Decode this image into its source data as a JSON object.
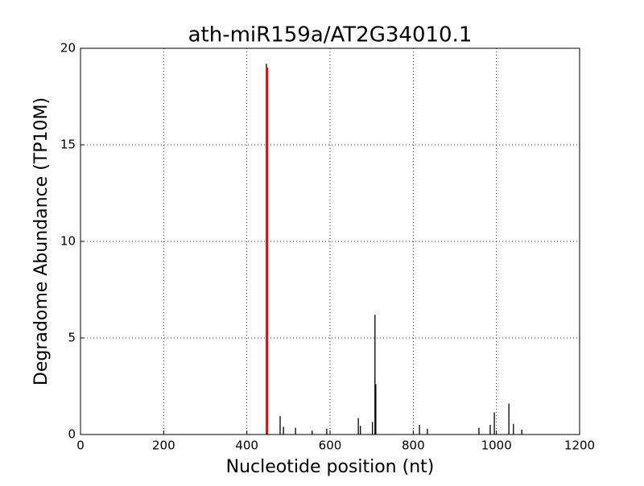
{
  "chart_data": {
    "type": "stem",
    "title": "ath-miR159a/AT2G34010.1",
    "x_label": "Nucleotide position (nt)",
    "y_label": "Degradome Abundance (TP10M)",
    "xlim": [
      0,
      1200
    ],
    "xticks": [
      0,
      200,
      400,
      600,
      800,
      1000,
      1200
    ],
    "ylim": [
      0,
      20
    ],
    "yticks": [
      0,
      5,
      10,
      15,
      20
    ],
    "grid": true,
    "series": [
      {
        "color": "#000000",
        "x": [
          447,
          480,
          488,
          517,
          557,
          592,
          668,
          673,
          702,
          708,
          710,
          815,
          834,
          958,
          985,
          995,
          1030,
          1041,
          1061
        ],
        "values": [
          19.2,
          0.95,
          0.4,
          0.35,
          0.2,
          0.3,
          0.85,
          0.45,
          0.65,
          6.2,
          2.6,
          0.5,
          0.3,
          0.35,
          0.5,
          1.15,
          1.6,
          0.55,
          0.25
        ]
      },
      {
        "color": "#ff0000",
        "x": [
          449
        ],
        "values": [
          19
        ]
      }
    ]
  }
}
